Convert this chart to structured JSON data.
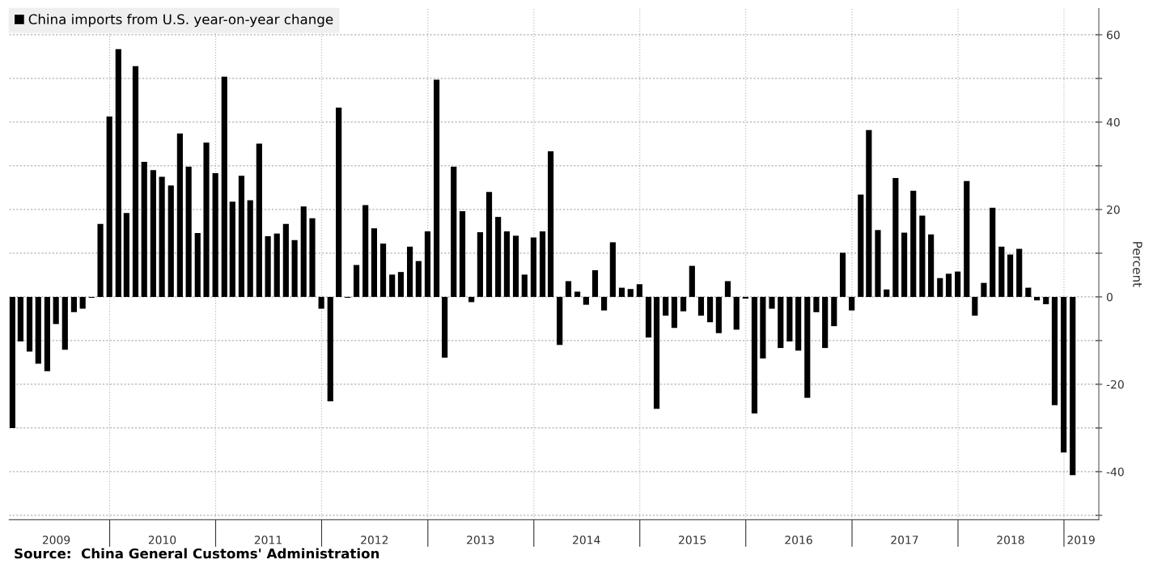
{
  "chart_data": {
    "type": "bar",
    "ylabel": "Percent",
    "x": [
      "2009-01-31",
      "2009-02-28",
      "2009-03-31",
      "2009-04-30",
      "2009-05-31",
      "2009-06-30",
      "2009-07-31",
      "2009-08-31",
      "2009-09-30",
      "2009-10-31",
      "2009-11-30",
      "2009-12-31",
      "2010-01-31",
      "2010-02-28",
      "2010-03-31",
      "2010-04-30",
      "2010-05-31",
      "2010-06-30",
      "2010-07-31",
      "2010-08-31",
      "2010-09-30",
      "2010-10-31",
      "2010-11-30",
      "2010-12-31",
      "2011-01-31",
      "2011-02-28",
      "2011-03-31",
      "2011-04-30",
      "2011-05-31",
      "2011-06-30",
      "2011-07-31",
      "2011-08-31",
      "2011-09-30",
      "2011-10-31",
      "2011-11-30",
      "2011-12-31",
      "2012-01-31",
      "2012-02-29",
      "2012-03-31",
      "2012-04-30",
      "2012-05-31",
      "2012-06-30",
      "2012-07-31",
      "2012-08-31",
      "2012-09-30",
      "2012-10-31",
      "2012-11-30",
      "2012-12-31",
      "2013-01-31",
      "2013-02-28",
      "2013-03-31",
      "2013-04-30",
      "2013-05-31",
      "2013-06-30",
      "2013-07-31",
      "2013-08-31",
      "2013-09-30",
      "2013-10-31",
      "2013-11-30",
      "2013-12-31",
      "2014-01-31",
      "2014-02-28",
      "2014-03-31",
      "2014-04-30",
      "2014-05-31",
      "2014-06-30",
      "2014-07-31",
      "2014-08-31",
      "2014-09-30",
      "2014-10-31",
      "2014-11-30",
      "2014-12-31",
      "2015-01-31",
      "2015-02-28",
      "2015-03-31",
      "2015-04-30",
      "2015-05-31",
      "2015-06-30",
      "2015-07-31",
      "2015-08-31",
      "2015-09-30",
      "2015-10-31",
      "2015-11-30",
      "2015-12-31",
      "2016-01-31",
      "2016-02-29",
      "2016-03-31",
      "2016-04-30",
      "2016-05-31",
      "2016-06-30",
      "2016-07-31",
      "2016-08-31",
      "2016-09-30",
      "2016-10-31",
      "2016-11-30",
      "2016-12-31",
      "2017-01-31",
      "2017-02-28",
      "2017-03-31",
      "2017-04-30",
      "2017-05-31",
      "2017-06-30",
      "2017-07-31",
      "2017-08-31",
      "2017-09-30",
      "2017-10-31",
      "2017-11-30",
      "2017-12-31",
      "2018-01-31",
      "2018-02-28",
      "2018-03-31",
      "2018-04-30",
      "2018-05-31",
      "2018-06-30",
      "2018-07-31",
      "2018-08-31",
      "2018-09-30",
      "2018-10-31",
      "2018-11-30",
      "2018-12-31",
      "2019-01-31"
    ],
    "series": [
      {
        "name": "China imports from U.S. year-on-year change",
        "color": "#000000",
        "values": [
          -30,
          -10.2,
          -12.5,
          -15.3,
          -17,
          -6.2,
          -12.1,
          -3.5,
          -2.7,
          -0.2,
          16.7,
          41.3,
          56.7,
          19.2,
          52.8,
          30.9,
          29,
          27.5,
          25.5,
          37.4,
          29.8,
          14.6,
          35.3,
          28.3,
          50.4,
          21.8,
          27.7,
          22.1,
          35.1,
          13.9,
          14.5,
          16.7,
          13,
          20.7,
          18,
          -2.7,
          -23.9,
          43.3,
          -0.2,
          7.3,
          21,
          15.7,
          12.2,
          5.1,
          5.7,
          11.5,
          8.2,
          15,
          49.7,
          -13.9,
          29.8,
          19.6,
          -1.2,
          14.8,
          24,
          18.3,
          15,
          14,
          5.1,
          13.6,
          15,
          33.3,
          -11,
          3.6,
          1.2,
          -1.8,
          6.1,
          -3.1,
          12.5,
          2.1,
          1.8,
          2.9,
          -9.3,
          -25.6,
          -4.3,
          -7.1,
          -3.3,
          7.1,
          -4.3,
          -5.8,
          -8.3,
          3.6,
          -7.5,
          -0.4,
          -26.7,
          -14.1,
          -2.7,
          -11.7,
          -10.2,
          -12.3,
          -23.1,
          -3.5,
          -11.7,
          -6.7,
          10.1,
          -3.1,
          23.4,
          38.2,
          15.3,
          1.7,
          27.2,
          14.7,
          24.3,
          18.6,
          14.3,
          4.3,
          5.3,
          5.8,
          26.5,
          -4.3,
          3.2,
          20.4,
          11.5,
          9.7,
          11,
          2.1,
          -0.8,
          -1.7,
          -24.8,
          -35.6,
          -40.8
        ]
      }
    ],
    "xlim": [
      "2009-01-20",
      "2019-05-01"
    ],
    "xticks": [
      {
        "value": "2009-07-01",
        "label": "2009"
      },
      {
        "value": "2010-07-01",
        "label": "2010"
      },
      {
        "value": "2011-07-01",
        "label": "2011"
      },
      {
        "value": "2012-07-01",
        "label": "2012"
      },
      {
        "value": "2013-07-01",
        "label": "2013"
      },
      {
        "value": "2014-07-01",
        "label": "2014"
      },
      {
        "value": "2015-07-01",
        "label": "2015"
      },
      {
        "value": "2016-07-01",
        "label": "2016"
      },
      {
        "value": "2017-07-01",
        "label": "2017"
      },
      {
        "value": "2018-07-01",
        "label": "2018"
      },
      {
        "value": "2019-03-01",
        "label": "2019"
      },
      {
        "value": "2010-01-01",
        "label": null
      },
      {
        "value": "2011-01-01",
        "label": null
      },
      {
        "value": "2012-01-01",
        "label": null
      },
      {
        "value": "2013-01-01",
        "label": null
      },
      {
        "value": "2014-01-01",
        "label": null
      },
      {
        "value": "2015-01-01",
        "label": null
      },
      {
        "value": "2016-01-01",
        "label": null
      },
      {
        "value": "2017-01-01",
        "label": null
      },
      {
        "value": "2018-01-01",
        "label": null
      },
      {
        "value": "2019-01-01",
        "label": null
      }
    ],
    "ylim": [
      -51,
      66
    ],
    "yticks": [
      -40,
      -20,
      0,
      20,
      40,
      60,
      {
        "value": -50,
        "label": null
      },
      {
        "value": -30,
        "label": null
      },
      {
        "value": -10,
        "label": null
      },
      {
        "value": 10,
        "label": null
      },
      {
        "value": 30,
        "label": null
      },
      {
        "value": 50,
        "label": null
      }
    ],
    "ref_lines": [
      {
        "axis": "x",
        "value": "2010-01-01",
        "line_style": "dotted",
        "color": "#b0b0b0"
      },
      {
        "axis": "x",
        "value": "2011-01-01",
        "line_style": "dotted",
        "color": "#b0b0b0"
      },
      {
        "axis": "x",
        "value": "2012-01-01",
        "line_style": "dotted",
        "color": "#b0b0b0"
      },
      {
        "axis": "x",
        "value": "2013-01-01",
        "line_style": "dotted",
        "color": "#b0b0b0"
      },
      {
        "axis": "x",
        "value": "2014-01-01",
        "line_style": "dotted",
        "color": "#b0b0b0"
      },
      {
        "axis": "x",
        "value": "2015-01-01",
        "line_style": "dotted",
        "color": "#b0b0b0"
      },
      {
        "axis": "x",
        "value": "2016-01-01",
        "line_style": "dotted",
        "color": "#b0b0b0"
      },
      {
        "axis": "x",
        "value": "2017-01-01",
        "line_style": "dotted",
        "color": "#b0b0b0"
      },
      {
        "axis": "x",
        "value": "2018-01-01",
        "line_style": "dotted",
        "color": "#b0b0b0"
      },
      {
        "axis": "x",
        "value": "2019-01-01",
        "line_style": "dotted",
        "color": "#b0b0b0"
      }
    ],
    "grid": "y",
    "legend": "top left",
    "annotations": [
      "Source:  China General Customs' Administration"
    ]
  }
}
